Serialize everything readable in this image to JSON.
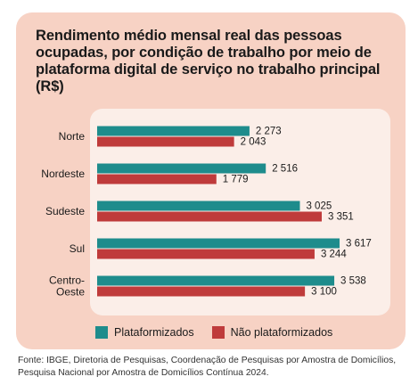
{
  "chart_data": {
    "type": "bar",
    "orientation": "horizontal",
    "title": "Rendimento médio mensal real das pessoas ocupadas, por condição de trabalho por meio de plataforma digital de serviço no trabalho principal (R$)",
    "categories": [
      "Norte",
      "Nordeste",
      "Sudeste",
      "Sul",
      "Centro-Oeste"
    ],
    "category_lines": [
      [
        "Norte"
      ],
      [
        "Nordeste"
      ],
      [
        "Sudeste"
      ],
      [
        "Sul"
      ],
      [
        "Centro-",
        "Oeste"
      ]
    ],
    "series": [
      {
        "name": "Plataformizados",
        "color": "#1e8c8c",
        "values": [
          2273,
          2516,
          3025,
          3617,
          3538
        ],
        "labels": [
          "2 273",
          "2 516",
          "3 025",
          "3 617",
          "3 538"
        ]
      },
      {
        "name": "Não plataformizados",
        "color": "#bf3b3b",
        "values": [
          2043,
          1779,
          3351,
          3244,
          3100
        ],
        "labels": [
          "2 043",
          "1 779",
          "3 351",
          "3 244",
          "3 100"
        ]
      }
    ],
    "xlim": [
      0,
      3617
    ],
    "grid": false,
    "legend_position": "bottom"
  },
  "source_note": "Fonte: IBGE, Diretoria de Pesquisas, Coordenação de Pesquisas por Amostra de Domicílios, Pesquisa Nacional por Amostra de Domicílios Contínua 2024."
}
